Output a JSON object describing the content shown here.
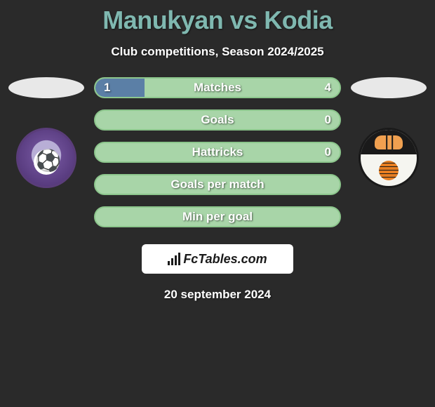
{
  "header": {
    "title": "Manukyan vs Kodia",
    "subtitle": "Club competitions, Season 2024/2025",
    "title_color": "#7fb8b0"
  },
  "colors": {
    "accent_green": "#a8d5a8",
    "accent_green_border": "#8cc68c",
    "fill_blue": "#5b7fa6",
    "background": "#2a2a2a"
  },
  "stats": [
    {
      "label": "Matches",
      "left_value": "1",
      "right_value": "4",
      "left_fill_pct": 20,
      "show_values": true
    },
    {
      "label": "Goals",
      "left_value": "",
      "right_value": "0",
      "left_fill_pct": 0,
      "show_values": true
    },
    {
      "label": "Hattricks",
      "left_value": "",
      "right_value": "0",
      "left_fill_pct": 0,
      "show_values": true
    },
    {
      "label": "Goals per match",
      "left_value": "",
      "right_value": "",
      "left_fill_pct": 0,
      "show_values": false
    },
    {
      "label": "Min per goal",
      "left_value": "",
      "right_value": "",
      "left_fill_pct": 0,
      "show_values": false
    }
  ],
  "footer": {
    "brand": "FcTables.com",
    "date": "20 september 2024"
  },
  "clubs": {
    "left_name": "alashkert-fc",
    "right_name": "shirak-fc"
  }
}
